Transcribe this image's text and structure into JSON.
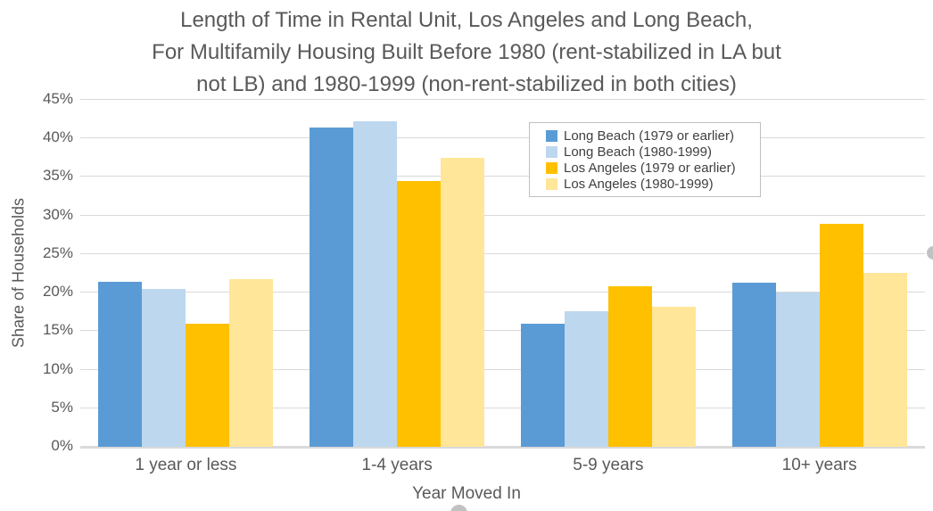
{
  "title_lines": [
    "Length of Time in Rental Unit, Los Angeles and Long Beach,",
    "For Multifamily Housing Built Before 1980 (rent-stabilized in LA but",
    "not LB) and 1980-1999 (non-rent-stabilized in both cities)"
  ],
  "chart_data": {
    "type": "bar",
    "title": "Length of Time in Rental Unit, Los Angeles and Long Beach, For Multifamily Housing Built Before 1980 (rent-stabilized in LA but not LB) and 1980-1999 (non-rent-stabilized in both cities)",
    "xlabel": "Year Moved In",
    "ylabel": "Share of Households",
    "categories": [
      "1 year or less",
      "1-4 years",
      "5-9 years",
      "10+ years"
    ],
    "series": [
      {
        "name": "Long Beach (1979 or earlier)",
        "color": "#5B9BD5",
        "values": [
          21.4,
          41.4,
          16.0,
          21.3
        ]
      },
      {
        "name": "Long Beach (1980-1999)",
        "color": "#BDD7EE",
        "values": [
          20.5,
          42.2,
          17.6,
          20.0
        ]
      },
      {
        "name": "Los Angeles (1979 or earlier)",
        "color": "#FFC000",
        "values": [
          16.0,
          34.5,
          20.8,
          28.9
        ]
      },
      {
        "name": "Los Angeles (1980-1999)",
        "color": "#FFE699",
        "values": [
          21.8,
          37.5,
          18.2,
          22.6
        ]
      }
    ],
    "ylim": [
      0,
      45
    ],
    "ytick_step": 5,
    "ytick_labels": [
      "0%",
      "5%",
      "10%",
      "15%",
      "20%",
      "25%",
      "30%",
      "35%",
      "40%",
      "45%"
    ],
    "grid": true,
    "gridline_color": "#D9D9D9",
    "axis_text_color": "#595959",
    "legend_position": "inside-top-right",
    "legend_border_color": "#BFBFBF"
  }
}
